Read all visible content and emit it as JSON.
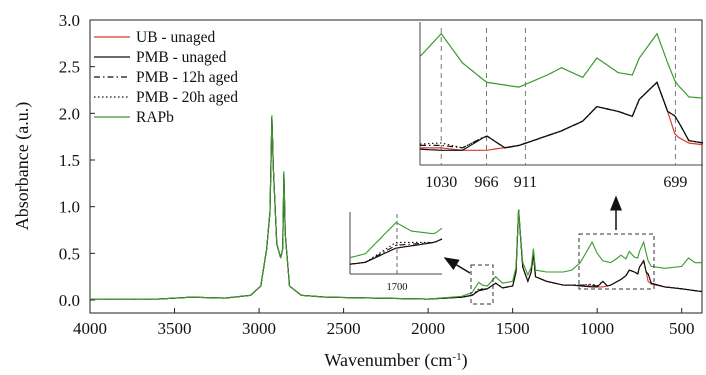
{
  "chart_data": {
    "type": "line",
    "xlabel": "Wavenumber (cm",
    "xlabel_sup": "-1",
    "xlabel_close": ")",
    "ylabel": "Absorbance (a.u.)",
    "xlim": [
      4000,
      380
    ],
    "ylim": [
      -0.05,
      3.0
    ],
    "x_ticks": [
      "4000",
      "3500",
      "3000",
      "2500",
      "2000",
      "1500",
      "1000",
      "500"
    ],
    "y_ticks": [
      "0.0",
      "0.5",
      "1.0",
      "1.5",
      "2.0",
      "2.5",
      "3.0"
    ],
    "legend_position": "top-left",
    "series": [
      {
        "name": "UB - unaged",
        "color": "#d93a2b",
        "style": "solid",
        "points": [
          [
            4000,
            0.01
          ],
          [
            3600,
            0.01
          ],
          [
            3400,
            0.03
          ],
          [
            3200,
            0.02
          ],
          [
            3050,
            0.05
          ],
          [
            2990,
            0.15
          ],
          [
            2955,
            0.55
          ],
          [
            2935,
            0.95
          ],
          [
            2924,
            1.96
          ],
          [
            2915,
            1.4
          ],
          [
            2895,
            0.6
          ],
          [
            2872,
            0.45
          ],
          [
            2860,
            0.55
          ],
          [
            2853,
            1.35
          ],
          [
            2845,
            0.7
          ],
          [
            2820,
            0.15
          ],
          [
            2750,
            0.05
          ],
          [
            2600,
            0.03
          ],
          [
            2000,
            0.01
          ],
          [
            1800,
            0.03
          ],
          [
            1740,
            0.05
          ],
          [
            1700,
            0.1
          ],
          [
            1650,
            0.12
          ],
          [
            1600,
            0.18
          ],
          [
            1560,
            0.13
          ],
          [
            1500,
            0.15
          ],
          [
            1480,
            0.3
          ],
          [
            1465,
            0.95
          ],
          [
            1455,
            0.7
          ],
          [
            1440,
            0.35
          ],
          [
            1410,
            0.2
          ],
          [
            1390,
            0.3
          ],
          [
            1377,
            0.5
          ],
          [
            1365,
            0.25
          ],
          [
            1300,
            0.2
          ],
          [
            1200,
            0.16
          ],
          [
            1150,
            0.16
          ],
          [
            1100,
            0.15
          ],
          [
            1030,
            0.15
          ],
          [
            1000,
            0.14
          ],
          [
            966,
            0.14
          ],
          [
            920,
            0.16
          ],
          [
            880,
            0.2
          ],
          [
            860,
            0.22
          ],
          [
            830,
            0.26
          ],
          [
            810,
            0.32
          ],
          [
            780,
            0.3
          ],
          [
            760,
            0.28
          ],
          [
            750,
            0.35
          ],
          [
            725,
            0.42
          ],
          [
            710,
            0.3
          ],
          [
            699,
            0.2
          ],
          [
            680,
            0.17
          ],
          [
            600,
            0.14
          ],
          [
            500,
            0.12
          ],
          [
            420,
            0.1
          ],
          [
            380,
            0.09
          ]
        ]
      },
      {
        "name": "PMB - unaged",
        "color": "#111111",
        "style": "solid",
        "points": [
          [
            4000,
            0.01
          ],
          [
            3600,
            0.01
          ],
          [
            3400,
            0.03
          ],
          [
            3200,
            0.02
          ],
          [
            3050,
            0.05
          ],
          [
            2990,
            0.15
          ],
          [
            2955,
            0.55
          ],
          [
            2935,
            0.95
          ],
          [
            2924,
            1.96
          ],
          [
            2915,
            1.4
          ],
          [
            2895,
            0.6
          ],
          [
            2872,
            0.45
          ],
          [
            2860,
            0.55
          ],
          [
            2853,
            1.35
          ],
          [
            2845,
            0.7
          ],
          [
            2820,
            0.15
          ],
          [
            2750,
            0.05
          ],
          [
            2600,
            0.03
          ],
          [
            2000,
            0.01
          ],
          [
            1800,
            0.03
          ],
          [
            1740,
            0.05
          ],
          [
            1700,
            0.1
          ],
          [
            1650,
            0.12
          ],
          [
            1600,
            0.18
          ],
          [
            1560,
            0.13
          ],
          [
            1500,
            0.15
          ],
          [
            1480,
            0.3
          ],
          [
            1465,
            0.97
          ],
          [
            1455,
            0.72
          ],
          [
            1440,
            0.35
          ],
          [
            1410,
            0.2
          ],
          [
            1390,
            0.3
          ],
          [
            1377,
            0.5
          ],
          [
            1365,
            0.25
          ],
          [
            1300,
            0.2
          ],
          [
            1200,
            0.16
          ],
          [
            1150,
            0.16
          ],
          [
            1100,
            0.15
          ],
          [
            1030,
            0.14
          ],
          [
            1000,
            0.14
          ],
          [
            966,
            0.2
          ],
          [
            940,
            0.15
          ],
          [
            920,
            0.16
          ],
          [
            880,
            0.2
          ],
          [
            860,
            0.22
          ],
          [
            830,
            0.26
          ],
          [
            810,
            0.32
          ],
          [
            780,
            0.3
          ],
          [
            760,
            0.28
          ],
          [
            750,
            0.35
          ],
          [
            725,
            0.42
          ],
          [
            710,
            0.3
          ],
          [
            699,
            0.28
          ],
          [
            680,
            0.18
          ],
          [
            600,
            0.14
          ],
          [
            500,
            0.12
          ],
          [
            420,
            0.1
          ],
          [
            380,
            0.09
          ]
        ]
      },
      {
        "name": "PMB - 12h aged",
        "color": "#111111",
        "style": "dashdot",
        "points": [
          [
            4000,
            0.01
          ],
          [
            3600,
            0.01
          ],
          [
            3400,
            0.03
          ],
          [
            3200,
            0.02
          ],
          [
            3050,
            0.05
          ],
          [
            2990,
            0.15
          ],
          [
            2955,
            0.55
          ],
          [
            2935,
            0.95
          ],
          [
            2924,
            1.96
          ],
          [
            2915,
            1.4
          ],
          [
            2895,
            0.6
          ],
          [
            2872,
            0.45
          ],
          [
            2860,
            0.55
          ],
          [
            2853,
            1.35
          ],
          [
            2845,
            0.7
          ],
          [
            2820,
            0.15
          ],
          [
            2750,
            0.05
          ],
          [
            2600,
            0.03
          ],
          [
            2000,
            0.01
          ],
          [
            1800,
            0.03
          ],
          [
            1740,
            0.05
          ],
          [
            1700,
            0.11
          ],
          [
            1650,
            0.12
          ],
          [
            1600,
            0.18
          ],
          [
            1560,
            0.13
          ],
          [
            1500,
            0.15
          ],
          [
            1480,
            0.3
          ],
          [
            1465,
            0.97
          ],
          [
            1455,
            0.72
          ],
          [
            1440,
            0.35
          ],
          [
            1410,
            0.2
          ],
          [
            1390,
            0.3
          ],
          [
            1377,
            0.5
          ],
          [
            1365,
            0.25
          ],
          [
            1300,
            0.2
          ],
          [
            1200,
            0.16
          ],
          [
            1150,
            0.16
          ],
          [
            1100,
            0.16
          ],
          [
            1030,
            0.16
          ],
          [
            1000,
            0.15
          ],
          [
            966,
            0.2
          ],
          [
            940,
            0.15
          ],
          [
            920,
            0.16
          ],
          [
            880,
            0.2
          ],
          [
            860,
            0.22
          ],
          [
            830,
            0.26
          ],
          [
            810,
            0.32
          ],
          [
            780,
            0.3
          ],
          [
            760,
            0.28
          ],
          [
            750,
            0.35
          ],
          [
            725,
            0.42
          ],
          [
            710,
            0.3
          ],
          [
            699,
            0.28
          ],
          [
            680,
            0.18
          ],
          [
            600,
            0.14
          ],
          [
            500,
            0.12
          ],
          [
            420,
            0.1
          ],
          [
            380,
            0.09
          ]
        ]
      },
      {
        "name": "PMB - 20h aged",
        "color": "#111111",
        "style": "dotted",
        "points": [
          [
            4000,
            0.01
          ],
          [
            3600,
            0.01
          ],
          [
            3400,
            0.03
          ],
          [
            3200,
            0.02
          ],
          [
            3050,
            0.05
          ],
          [
            2990,
            0.15
          ],
          [
            2955,
            0.55
          ],
          [
            2935,
            0.95
          ],
          [
            2924,
            1.96
          ],
          [
            2915,
            1.4
          ],
          [
            2895,
            0.6
          ],
          [
            2872,
            0.45
          ],
          [
            2860,
            0.55
          ],
          [
            2853,
            1.35
          ],
          [
            2845,
            0.7
          ],
          [
            2820,
            0.15
          ],
          [
            2750,
            0.05
          ],
          [
            2600,
            0.03
          ],
          [
            2000,
            0.01
          ],
          [
            1800,
            0.03
          ],
          [
            1740,
            0.05
          ],
          [
            1700,
            0.12
          ],
          [
            1650,
            0.12
          ],
          [
            1600,
            0.18
          ],
          [
            1560,
            0.13
          ],
          [
            1500,
            0.15
          ],
          [
            1480,
            0.3
          ],
          [
            1465,
            0.97
          ],
          [
            1455,
            0.72
          ],
          [
            1440,
            0.35
          ],
          [
            1410,
            0.2
          ],
          [
            1390,
            0.3
          ],
          [
            1377,
            0.5
          ],
          [
            1365,
            0.25
          ],
          [
            1300,
            0.2
          ],
          [
            1200,
            0.16
          ],
          [
            1150,
            0.16
          ],
          [
            1100,
            0.16
          ],
          [
            1030,
            0.17
          ],
          [
            1000,
            0.15
          ],
          [
            966,
            0.2
          ],
          [
            940,
            0.15
          ],
          [
            920,
            0.16
          ],
          [
            880,
            0.2
          ],
          [
            860,
            0.22
          ],
          [
            830,
            0.26
          ],
          [
            810,
            0.32
          ],
          [
            780,
            0.3
          ],
          [
            760,
            0.28
          ],
          [
            750,
            0.35
          ],
          [
            725,
            0.42
          ],
          [
            710,
            0.3
          ],
          [
            699,
            0.28
          ],
          [
            680,
            0.18
          ],
          [
            600,
            0.14
          ],
          [
            500,
            0.12
          ],
          [
            420,
            0.1
          ],
          [
            380,
            0.09
          ]
        ]
      },
      {
        "name": "RAPb",
        "color": "#3a9a2e",
        "style": "solid",
        "points": [
          [
            4000,
            0.01
          ],
          [
            3600,
            0.01
          ],
          [
            3400,
            0.03
          ],
          [
            3200,
            0.02
          ],
          [
            3050,
            0.05
          ],
          [
            2990,
            0.15
          ],
          [
            2955,
            0.55
          ],
          [
            2935,
            0.95
          ],
          [
            2924,
            1.98
          ],
          [
            2915,
            1.4
          ],
          [
            2895,
            0.6
          ],
          [
            2872,
            0.45
          ],
          [
            2860,
            0.55
          ],
          [
            2853,
            1.38
          ],
          [
            2845,
            0.7
          ],
          [
            2820,
            0.15
          ],
          [
            2750,
            0.05
          ],
          [
            2600,
            0.03
          ],
          [
            2000,
            0.01
          ],
          [
            1800,
            0.04
          ],
          [
            1740,
            0.08
          ],
          [
            1700,
            0.19
          ],
          [
            1680,
            0.16
          ],
          [
            1650,
            0.15
          ],
          [
            1600,
            0.25
          ],
          [
            1560,
            0.18
          ],
          [
            1500,
            0.2
          ],
          [
            1480,
            0.35
          ],
          [
            1465,
            0.97
          ],
          [
            1455,
            0.72
          ],
          [
            1440,
            0.4
          ],
          [
            1410,
            0.27
          ],
          [
            1390,
            0.35
          ],
          [
            1377,
            0.55
          ],
          [
            1365,
            0.32
          ],
          [
            1300,
            0.3
          ],
          [
            1250,
            0.3
          ],
          [
            1200,
            0.3
          ],
          [
            1150,
            0.32
          ],
          [
            1100,
            0.4
          ],
          [
            1030,
            0.62
          ],
          [
            1000,
            0.5
          ],
          [
            966,
            0.42
          ],
          [
            920,
            0.4
          ],
          [
            880,
            0.45
          ],
          [
            860,
            0.48
          ],
          [
            830,
            0.44
          ],
          [
            810,
            0.52
          ],
          [
            780,
            0.46
          ],
          [
            760,
            0.45
          ],
          [
            750,
            0.52
          ],
          [
            725,
            0.62
          ],
          [
            710,
            0.5
          ],
          [
            699,
            0.42
          ],
          [
            680,
            0.36
          ],
          [
            600,
            0.34
          ],
          [
            500,
            0.36
          ],
          [
            460,
            0.45
          ],
          [
            420,
            0.4
          ],
          [
            380,
            0.4
          ]
        ]
      }
    ],
    "insets": [
      {
        "label": "1700",
        "xlim": [
          1760,
          1640
        ],
        "reference_x": 1700
      },
      {
        "labels": [
          "1030",
          "966",
          "911",
          "699"
        ],
        "xlim": [
          1060,
          660
        ],
        "reference_x": [
          1030,
          966,
          911,
          699
        ]
      }
    ]
  }
}
